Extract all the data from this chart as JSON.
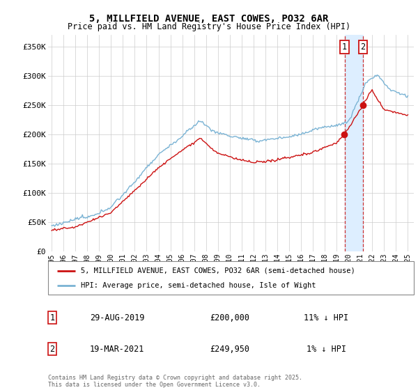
{
  "title_line1": "5, MILLFIELD AVENUE, EAST COWES, PO32 6AR",
  "title_line2": "Price paid vs. HM Land Registry's House Price Index (HPI)",
  "ylim": [
    0,
    370000
  ],
  "yticks": [
    0,
    50000,
    100000,
    150000,
    200000,
    250000,
    300000,
    350000
  ],
  "ytick_labels": [
    "£0",
    "£50K",
    "£100K",
    "£150K",
    "£200K",
    "£250K",
    "£300K",
    "£350K"
  ],
  "hpi_color": "#7ab3d4",
  "price_color": "#cc1111",
  "annotation1": {
    "label": "1",
    "date": "29-AUG-2019",
    "price": "£200,000",
    "note": "11% ↓ HPI"
  },
  "annotation2": {
    "label": "2",
    "date": "19-MAR-2021",
    "price": "£249,950",
    "note": "1% ↓ HPI"
  },
  "legend_line1": "5, MILLFIELD AVENUE, EAST COWES, PO32 6AR (semi-detached house)",
  "legend_line2": "HPI: Average price, semi-detached house, Isle of Wight",
  "footer": "Contains HM Land Registry data © Crown copyright and database right 2025.\nThis data is licensed under the Open Government Licence v3.0.",
  "bg_color": "#ffffff",
  "grid_color": "#cccccc",
  "sale1_year": 2019.667,
  "sale2_year": 2021.208,
  "sale1_price": 200000,
  "sale2_price": 249950,
  "ann_box1_color": "#cc1111",
  "ann_box2_color": "#cc1111",
  "shade_color": "#ddeeff"
}
